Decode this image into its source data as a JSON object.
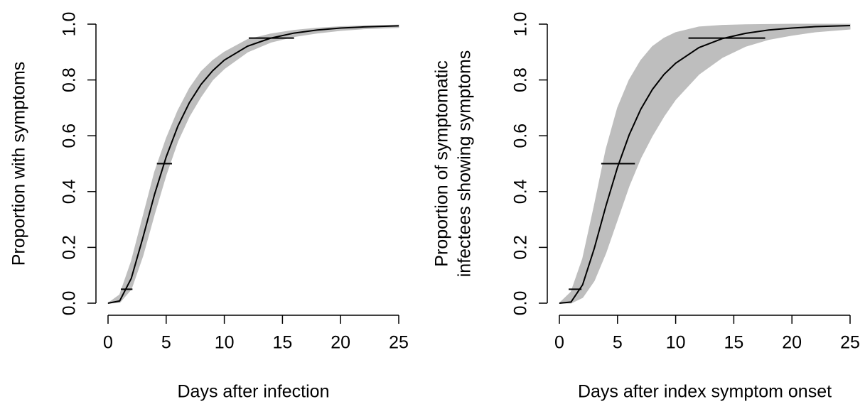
{
  "chart_data": [
    {
      "type": "line",
      "y_label": [
        "Proportion with symptoms"
      ],
      "x_label": "Days after infection",
      "x": [
        0,
        1,
        2,
        3,
        4,
        5,
        6,
        7,
        8,
        9,
        10,
        12,
        14,
        16,
        18,
        20,
        22,
        25
      ],
      "band": {
        "color": "#bebebe",
        "lower": [
          0,
          0.002,
          0.05,
          0.17,
          0.32,
          0.46,
          0.58,
          0.67,
          0.74,
          0.8,
          0.84,
          0.9,
          0.935,
          0.955,
          0.968,
          0.977,
          0.983,
          0.988
        ],
        "upper": [
          0,
          0.03,
          0.15,
          0.31,
          0.47,
          0.59,
          0.69,
          0.77,
          0.83,
          0.87,
          0.9,
          0.945,
          0.965,
          0.978,
          0.986,
          0.991,
          0.994,
          0.997
        ]
      },
      "curve": {
        "color": "#000000",
        "values": [
          0,
          0.008,
          0.089,
          0.235,
          0.39,
          0.524,
          0.634,
          0.719,
          0.784,
          0.833,
          0.871,
          0.921,
          0.95,
          0.968,
          0.979,
          0.986,
          0.99,
          0.994
        ]
      },
      "error_bars": [
        {
          "y": 0.05,
          "xmin": 1.1,
          "xmax": 2.1
        },
        {
          "y": 0.5,
          "xmin": 4.2,
          "xmax": 5.5
        },
        {
          "y": 0.95,
          "xmin": 12.1,
          "xmax": 16.0
        }
      ],
      "xlim": [
        0,
        25
      ],
      "ylim": [
        0,
        1
      ],
      "xticks": [
        0,
        5,
        10,
        15,
        20,
        25
      ],
      "yticks": [
        {
          "value": 0,
          "label": "0.0"
        },
        {
          "value": 0.2,
          "label": "0.2"
        },
        {
          "value": 0.4,
          "label": "0.4"
        },
        {
          "value": 0.6,
          "label": "0.6"
        },
        {
          "value": 0.8,
          "label": "0.8"
        },
        {
          "value": 1,
          "label": "1.0"
        }
      ]
    },
    {
      "type": "line",
      "y_label": [
        "Proportion of symptomatic",
        "infectees showing symptoms"
      ],
      "x_label": "Days after index symptom onset",
      "x": [
        0,
        1,
        2,
        3,
        4,
        5,
        6,
        7,
        8,
        9,
        10,
        12,
        14,
        16,
        18,
        20,
        22,
        25
      ],
      "band": {
        "color": "#bebebe",
        "lower": [
          0,
          0,
          0.02,
          0.08,
          0.18,
          0.3,
          0.42,
          0.52,
          0.6,
          0.67,
          0.73,
          0.82,
          0.88,
          0.92,
          0.945,
          0.96,
          0.972,
          0.982
        ],
        "upper": [
          0,
          0.04,
          0.16,
          0.35,
          0.55,
          0.7,
          0.8,
          0.87,
          0.92,
          0.95,
          0.97,
          0.99,
          0.996,
          0.998,
          0.999,
          1,
          1,
          1
        ]
      },
      "curve": {
        "color": "#000000",
        "values": [
          0,
          0.004,
          0.066,
          0.196,
          0.348,
          0.487,
          0.603,
          0.695,
          0.766,
          0.82,
          0.86,
          0.916,
          0.948,
          0.967,
          0.979,
          0.986,
          0.991,
          0.995
        ]
      },
      "error_bars": [
        {
          "y": 0.05,
          "xmin": 0.8,
          "xmax": 1.9
        },
        {
          "y": 0.5,
          "xmin": 3.6,
          "xmax": 6.5
        },
        {
          "y": 0.95,
          "xmin": 11.1,
          "xmax": 17.7
        }
      ],
      "xlim": [
        0,
        25
      ],
      "ylim": [
        0,
        1
      ],
      "xticks": [
        0,
        5,
        10,
        15,
        20,
        25
      ],
      "yticks": [
        {
          "value": 0,
          "label": "0.0"
        },
        {
          "value": 0.2,
          "label": "0.2"
        },
        {
          "value": 0.4,
          "label": "0.4"
        },
        {
          "value": 0.6,
          "label": "0.6"
        },
        {
          "value": 0.8,
          "label": "0.8"
        },
        {
          "value": 1,
          "label": "1.0"
        }
      ]
    }
  ]
}
